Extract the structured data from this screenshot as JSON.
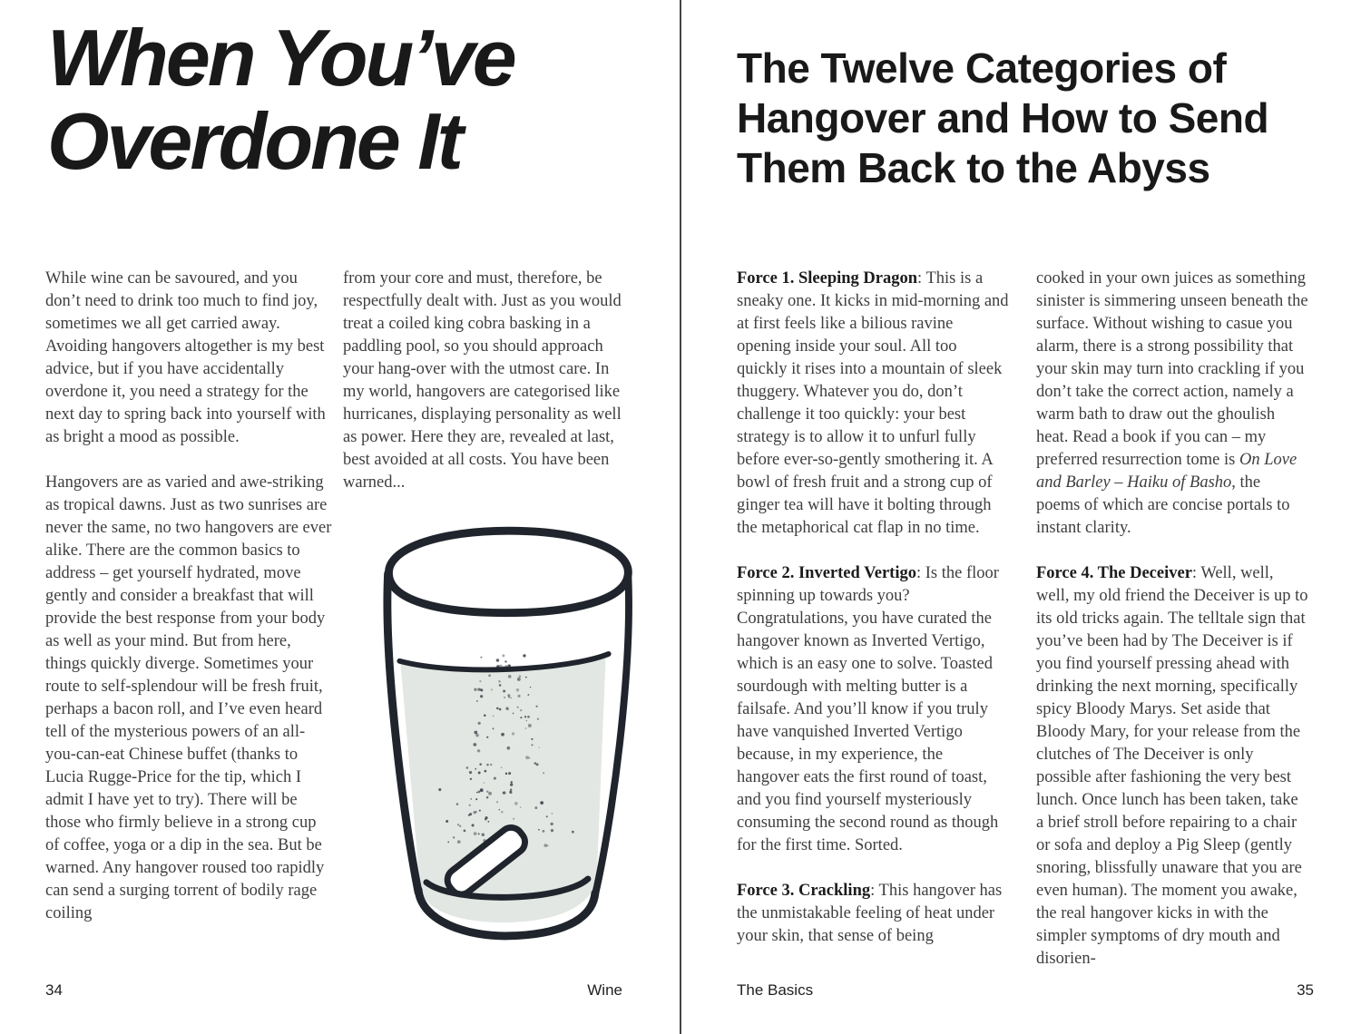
{
  "left_page": {
    "title": {
      "line1": "When You’ve",
      "line2": "Overdone It"
    },
    "column1": {
      "para1": "While wine can be savoured, and you don’t need to drink too much to find joy, sometimes we all get carried away. Avoiding hangovers altogether is my best advice, but if you have accidentally overdone it, you need a strategy for the next day to spring back into yourself with as bright a mood as possible.",
      "para2": "Hangovers are as varied and awe-striking as tropical dawns. Just as two sunrises are never the same, no two hangovers are ever alike. There are the common basics to address – get yourself hydrated, move gently and consider a breakfast that will provide the best response from your body as well as your mind. But from here, things quickly diverge. Sometimes your route to self-splendour will be fresh fruit, perhaps a bacon roll, and I’ve even heard tell of the mysterious powers of an all-you-can-eat Chinese buffet (thanks to Lucia Rugge-Price for the tip, which I admit I have yet to try). There will be those who firmly believe in a strong cup of coffee, yoga or a dip in the sea. But be warned. Any hangover roused too rapidly can send a surging torrent of bodily rage coiling"
    },
    "column2": {
      "para": "from your core and must, therefore, be respectfully dealt with. Just as you would treat a coiled king cobra basking in a paddling pool, so you should approach your hang-over with the utmost care. In my world, hangovers are categorised like hurricanes, displaying personality as well as power. Here they are, revealed at last, best avoided at all costs. You have been warned..."
    },
    "footer": {
      "page_number": "34",
      "section": "Wine"
    }
  },
  "illustration": {
    "name": "fizzing glass of water with dissolving tablet",
    "water_color": "#e3e7e3",
    "line_color": "#20242c"
  },
  "right_page": {
    "title": {
      "line1": "The Twelve Categories of",
      "line2": "Hangover and How to Send",
      "line3": "Them Back to the Abyss"
    },
    "column1": {
      "force1": {
        "lead": "Force 1. Sleeping Dragon",
        "body": ": This is a sneaky one. It kicks in mid-morning and at first feels like a bilious ravine opening inside your soul. All too quickly it rises into a mountain of sleek thuggery. Whatever you do, don’t challenge it too quickly: your best strategy is to allow it to unfurl fully before ever-so-gently smothering it. A bowl of fresh fruit and a strong cup of ginger tea will have it bolting through the metaphorical cat flap in no time."
      },
      "force2": {
        "lead": "Force 2. Inverted Vertigo",
        "body": ": Is the floor spinning up towards you? Congratulations, you have curated the hangover known as Inverted Vertigo, which is an easy one to solve. Toasted sourdough with melting butter is a failsafe. And you’ll know if you truly have vanquished Inverted Vertigo because, in my experience, the hangover eats the first round of toast, and you find yourself mysteriously consuming the second round as though for the first time. Sorted."
      },
      "force3": {
        "lead": "Force 3. Crackling",
        "body": ": This hangover has the unmistakable feeling of heat under your skin, that sense of being"
      }
    },
    "column2": {
      "continuation": {
        "pre": "cooked in your own juices as something sinister is simmering unseen beneath the surface. Without wishing to casue you alarm, there is a strong possibility that your skin may turn into crackling if you don’t take the correct action, namely a warm bath to draw out the ghoulish heat. Read a book if you can – my preferred resurrection tome is ",
        "book_title": "On Love and Barley – Haiku of Basho",
        "post": ", the poems of which are concise portals to instant clarity."
      },
      "force4": {
        "lead": "Force 4. The Deceiver",
        "body": ": Well, well, well, my old friend the Deceiver is up to its old tricks again. The telltale sign that you’ve been had by The Deceiver is if you find yourself pressing ahead with drinking the next morning, specifically spicy Bloody Marys. Set aside that Bloody Mary, for your release from the clutches of The Deceiver is only possible after fashioning the very best lunch. Once lunch has been taken, take a brief stroll before repairing to a chair or sofa and deploy a Pig Sleep (gently snoring, blissfully unaware that you are even human). The moment you awake, the real hangover kicks in with the simpler symptoms of dry mouth and disorien-"
      }
    },
    "footer": {
      "section": "The Basics",
      "page_number": "35"
    }
  }
}
